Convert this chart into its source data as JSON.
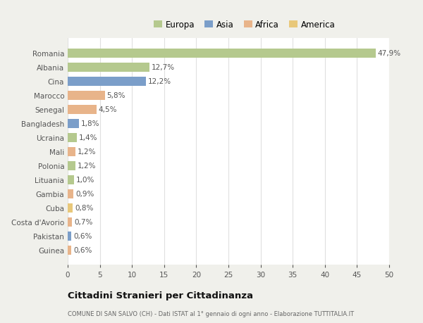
{
  "countries": [
    "Romania",
    "Albania",
    "Cina",
    "Marocco",
    "Senegal",
    "Bangladesh",
    "Ucraina",
    "Mali",
    "Polonia",
    "Lituania",
    "Gambia",
    "Cuba",
    "Costa d'Avorio",
    "Pakistan",
    "Guinea"
  ],
  "values": [
    47.9,
    12.7,
    12.2,
    5.8,
    4.5,
    1.8,
    1.4,
    1.2,
    1.2,
    1.0,
    0.9,
    0.8,
    0.7,
    0.6,
    0.6
  ],
  "labels": [
    "47,9%",
    "12,7%",
    "12,2%",
    "5,8%",
    "4,5%",
    "1,8%",
    "1,4%",
    "1,2%",
    "1,2%",
    "1,0%",
    "0,9%",
    "0,8%",
    "0,7%",
    "0,6%",
    "0,6%"
  ],
  "colors": [
    "#b5c98e",
    "#b5c98e",
    "#7b9ec9",
    "#e8b48a",
    "#e8b48a",
    "#7b9ec9",
    "#b5c98e",
    "#e8b48a",
    "#b5c98e",
    "#b5c98e",
    "#e8b48a",
    "#e8c87a",
    "#e8b48a",
    "#7b9ec9",
    "#e8b48a"
  ],
  "legend_labels": [
    "Europa",
    "Asia",
    "Africa",
    "America"
  ],
  "legend_colors": [
    "#b5c98e",
    "#7b9ec9",
    "#e8b48a",
    "#e8c87a"
  ],
  "xlim": [
    0,
    50
  ],
  "xticks": [
    0,
    5,
    10,
    15,
    20,
    25,
    30,
    35,
    40,
    45,
    50
  ],
  "title": "Cittadini Stranieri per Cittadinanza",
  "subtitle": "COMUNE DI SAN SALVO (CH) - Dati ISTAT al 1° gennaio di ogni anno - Elaborazione TUTTITALIA.IT",
  "fig_bg_color": "#f0f0eb",
  "plot_bg_color": "#ffffff",
  "bar_height": 0.65,
  "grid_color": "#e0e0e0",
  "text_color": "#555555",
  "title_color": "#111111",
  "subtitle_color": "#666666"
}
